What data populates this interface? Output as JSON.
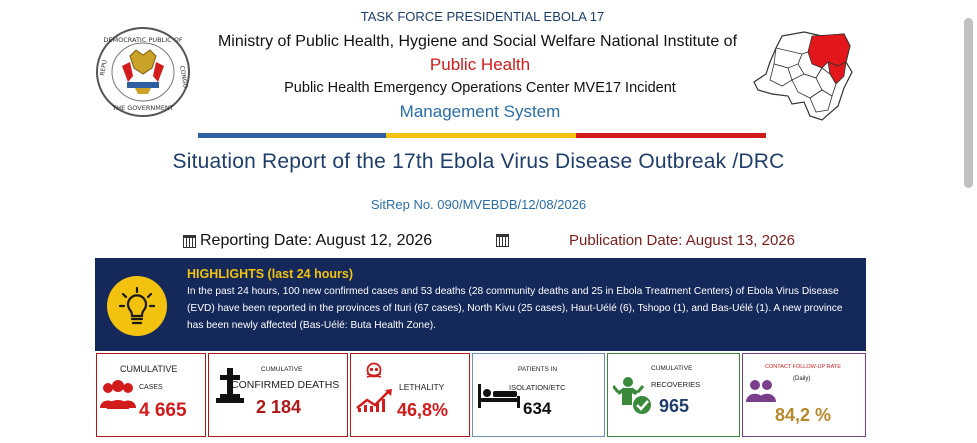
{
  "header": {
    "task_force": "TASK FORCE PRESIDENTIAL EBOLA 17",
    "ministry": "Ministry of Public Health, Hygiene and Social Welfare National Institute of",
    "public_health": "Public Health",
    "peoc": "Public Health Emergency Operations Center MVE17 Incident",
    "management": "Management System",
    "seal_text_top": "DEMOCRATIC PUBLIC OF",
    "seal_text_left": "REPU",
    "seal_text_right": "CONGO",
    "seal_text_bottom": "THE GOVERNMENT"
  },
  "flag_colors": [
    "#2e5fa3",
    "#f2c20f",
    "#d21b1b"
  ],
  "report": {
    "title": "Situation Report of the 17th Ebola Virus Disease Outbreak /DRC",
    "sitrep": "SitRep No. 090/MVEBDB/12/08/2026",
    "reporting_date": "Reporting Date: August 12, 2026",
    "publication_date": "Publication Date: August 13, 2026"
  },
  "highlights": {
    "title": "HIGHLIGHTS (last 24 hours)",
    "text": "In the past 24 hours, 100 new confirmed cases and 53 deaths (28 community deaths and 25 in Ebola Treatment Centers) of Ebola Virus Disease (EVD) have been reported in the provinces of Ituri (67 cases), North Kivu (25 cases), Haut-Uélé (6), Tshopo (1), and Bas-Uélé (1). A new province has been newly affected (Bas-Uélé: Buta Health Zone)."
  },
  "stats": {
    "cases": {
      "label_top": "CUMULATIVE",
      "label_bottom": "CASES",
      "value": "4 665",
      "color": "#d21b1b"
    },
    "deaths": {
      "label_top": "CUMULATIVE",
      "label_bottom": "CONFIRMED DEATHS",
      "value": "2 184",
      "color": "#b01818"
    },
    "lethality": {
      "label": "LETHALITY",
      "value": "46,8%",
      "color": "#d21b1b"
    },
    "isolation": {
      "label_top": "PATIENTS IN",
      "label_bottom": "ISOLATION/ETC",
      "value": "634",
      "color": "#111111"
    },
    "recoveries": {
      "label_top": "CUMULATIVE",
      "label_bottom": "RECOVERIES",
      "value": "965",
      "color": "#1f3e6b"
    },
    "contact": {
      "label_top": "CONTACT FOLLOW-UP RATE",
      "label_bottom": "(Daily)",
      "value": "84,2 %",
      "color": "#b8892a"
    }
  }
}
